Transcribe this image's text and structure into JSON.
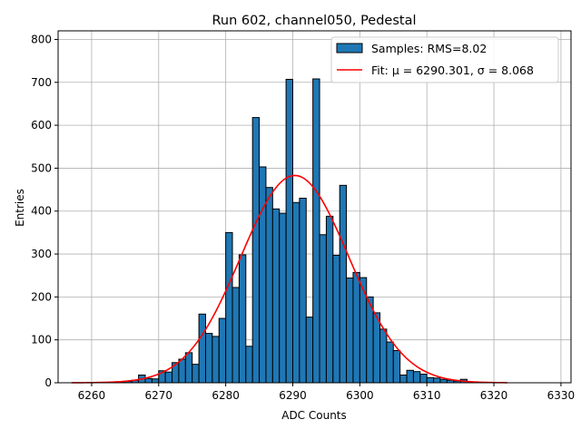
{
  "chart_data": {
    "type": "bar",
    "title": "Run 602, channel050, Pedestal",
    "xlabel": "ADC Counts",
    "ylabel": "Entries",
    "xlim": [
      6255.0,
      6331.5
    ],
    "ylim": [
      0,
      820
    ],
    "xticks": [
      6260,
      6270,
      6280,
      6290,
      6300,
      6310,
      6320,
      6330
    ],
    "yticks": [
      0,
      100,
      200,
      300,
      400,
      500,
      600,
      700,
      800
    ],
    "grid": true,
    "legend_position": "upper right",
    "bin_width": 1,
    "bin_starts": [
      6263,
      6264,
      6265,
      6266,
      6267,
      6268,
      6269,
      6270,
      6271,
      6272,
      6273,
      6274,
      6275,
      6276,
      6277,
      6278,
      6279,
      6280,
      6281,
      6282,
      6283,
      6284,
      6285,
      6286,
      6287,
      6288,
      6289,
      6290,
      6291,
      6292,
      6293,
      6294,
      6295,
      6296,
      6297,
      6298,
      6299,
      6300,
      6301,
      6302,
      6303,
      6304,
      6305,
      6306,
      6307,
      6308,
      6309,
      6310,
      6311,
      6312,
      6313,
      6314,
      6315,
      6316
    ],
    "series": [
      {
        "name": "Samples: RMS=8.02",
        "kind": "histogram",
        "color": "#1f77b4",
        "edgecolor": "#000000",
        "values": [
          1,
          2,
          3,
          6,
          18,
          10,
          9,
          28,
          25,
          47,
          55,
          70,
          43,
          160,
          115,
          108,
          150,
          350,
          222,
          298,
          85,
          618,
          503,
          455,
          405,
          395,
          707,
          420,
          430,
          153,
          708,
          345,
          388,
          297,
          460,
          244,
          257,
          245,
          200,
          163,
          125,
          95,
          75,
          18,
          29,
          26,
          20,
          12,
          11,
          8,
          6,
          4,
          8,
          2
        ]
      },
      {
        "name": "Fit: μ = 6290.301, σ = 8.068",
        "kind": "gaussian_fit",
        "color": "#ff0000",
        "mu": 6290.301,
        "sigma": 8.068,
        "peak": 483,
        "x_range": [
          6257,
          6322
        ]
      }
    ]
  }
}
